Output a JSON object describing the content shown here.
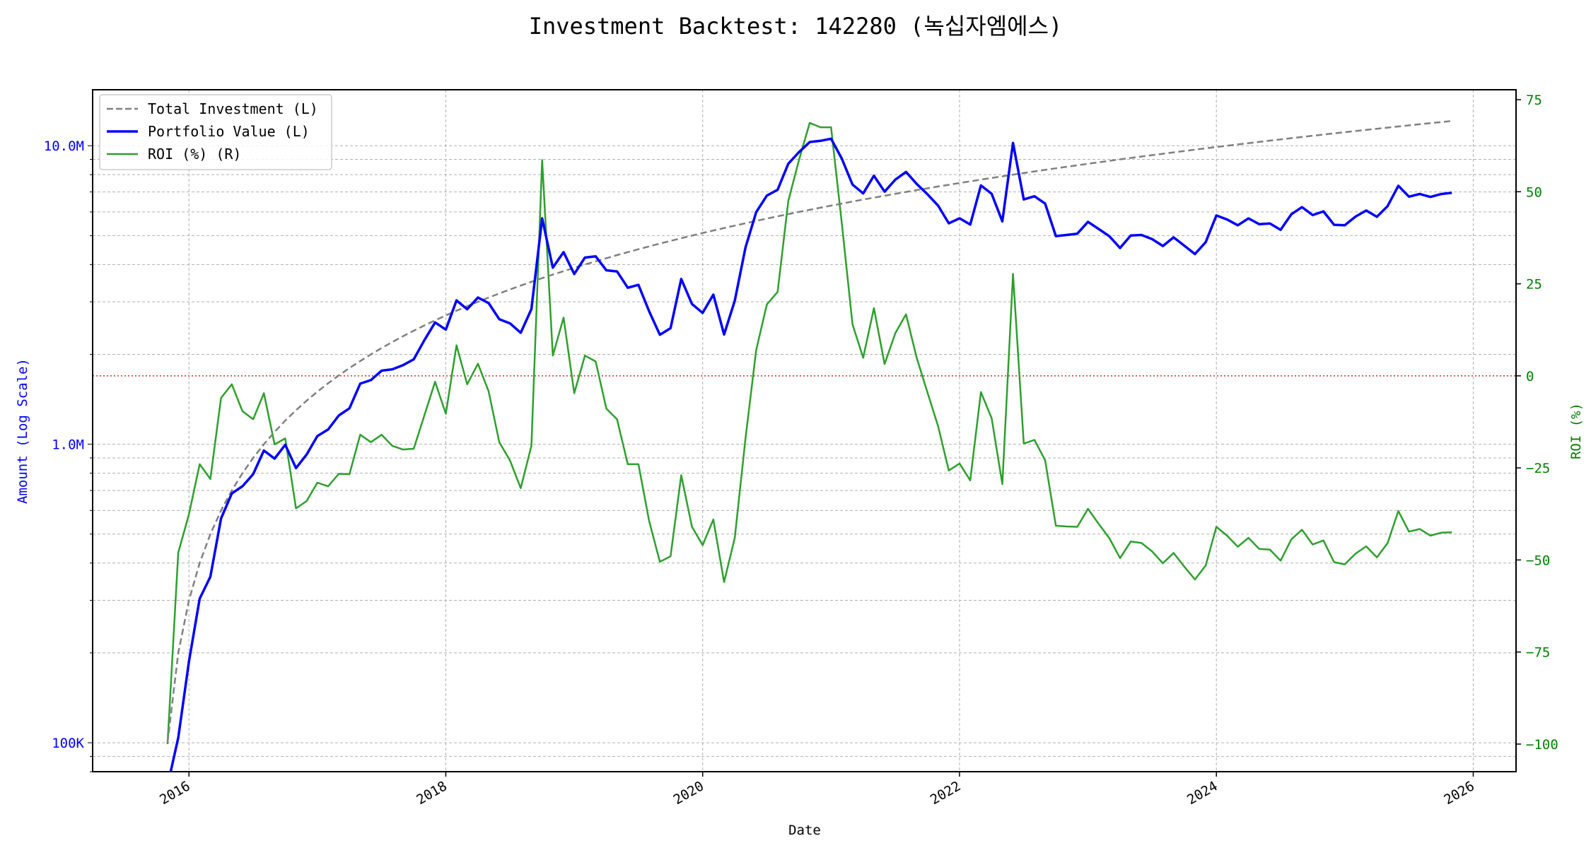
{
  "chart_data": {
    "type": "line",
    "title": "Investment Backtest: 142280 (녹십자엠에스)",
    "xlabel": "Date",
    "ylabel_left": "Amount (Log Scale)",
    "ylabel_right": "ROI (%)",
    "left_scale": "log",
    "ylim_left": [
      80000,
      15400000
    ],
    "ylim_right": [
      -107.5,
      77.7
    ],
    "xlim": [
      "2015-04",
      "2026-05"
    ],
    "grid": true,
    "legend_position": "top-left",
    "x_ticks": [
      "2016",
      "2018",
      "2020",
      "2022",
      "2024",
      "2026"
    ],
    "y_left_ticks": [
      {
        "value": 100000,
        "label": "100K"
      },
      {
        "value": 1000000,
        "label": "1.0M"
      },
      {
        "value": 10000000,
        "label": "10.0M"
      }
    ],
    "y_right_ticks": [
      {
        "value": -100,
        "label": "−100"
      },
      {
        "value": -75,
        "label": "−75"
      },
      {
        "value": -50,
        "label": "−50"
      },
      {
        "value": -25,
        "label": "−25"
      },
      {
        "value": 0,
        "label": "0"
      },
      {
        "value": 25,
        "label": "25"
      },
      {
        "value": 50,
        "label": "50"
      },
      {
        "value": 75,
        "label": "75"
      }
    ],
    "reference_line": {
      "axis": "right",
      "value": 0,
      "color": "#d62728",
      "style": "dotted"
    },
    "colors": {
      "investment": "#808080",
      "portfolio": "#0000ff",
      "roi": "#2ca02c",
      "left_axis": "#0000ff",
      "right_axis": "#008000"
    },
    "x": [
      "2015-11",
      "2015-12",
      "2016-01",
      "2016-02",
      "2016-03",
      "2016-04",
      "2016-05",
      "2016-06",
      "2016-07",
      "2016-08",
      "2016-09",
      "2016-10",
      "2016-11",
      "2016-12",
      "2017-01",
      "2017-02",
      "2017-03",
      "2017-04",
      "2017-05",
      "2017-06",
      "2017-07",
      "2017-08",
      "2017-09",
      "2017-10",
      "2017-11",
      "2017-12",
      "2018-01",
      "2018-02",
      "2018-03",
      "2018-04",
      "2018-05",
      "2018-06",
      "2018-07",
      "2018-08",
      "2018-09",
      "2018-10",
      "2018-11",
      "2018-12",
      "2019-01",
      "2019-02",
      "2019-03",
      "2019-04",
      "2019-05",
      "2019-06",
      "2019-07",
      "2019-08",
      "2019-09",
      "2019-10",
      "2019-11",
      "2019-12",
      "2020-01",
      "2020-02",
      "2020-03",
      "2020-04",
      "2020-05",
      "2020-06",
      "2020-07",
      "2020-08",
      "2020-09",
      "2020-10",
      "2020-11",
      "2020-12",
      "2021-01",
      "2021-02",
      "2021-03",
      "2021-04",
      "2021-05",
      "2021-06",
      "2021-07",
      "2021-08",
      "2021-09",
      "2021-10",
      "2021-11",
      "2021-12",
      "2022-01",
      "2022-02",
      "2022-03",
      "2022-04",
      "2022-05",
      "2022-06",
      "2022-07",
      "2022-08",
      "2022-09",
      "2022-10",
      "2022-11",
      "2022-12",
      "2023-01",
      "2023-02",
      "2023-03",
      "2023-04",
      "2023-05",
      "2023-06",
      "2023-07",
      "2023-08",
      "2023-09",
      "2023-10",
      "2023-11",
      "2023-12",
      "2024-01",
      "2024-02",
      "2024-03",
      "2024-04",
      "2024-05",
      "2024-06",
      "2024-07",
      "2024-08",
      "2024-09",
      "2024-10",
      "2024-11",
      "2024-12",
      "2025-01",
      "2025-02",
      "2025-03",
      "2025-04",
      "2025-05",
      "2025-06",
      "2025-07",
      "2025-08",
      "2025-09",
      "2025-10",
      "2025-11"
    ],
    "series": [
      {
        "name": "Total Investment (L)",
        "axis": "left",
        "style": "dashed",
        "unit": "M",
        "values": [
          0.1,
          0.2,
          0.3,
          0.4,
          0.5,
          0.6,
          0.7,
          0.8,
          0.9,
          1.0,
          1.1,
          1.2,
          1.3,
          1.4,
          1.5,
          1.6,
          1.7,
          1.8,
          1.9,
          2.0,
          2.1,
          2.2,
          2.3,
          2.4,
          2.5,
          2.6,
          2.7,
          2.8,
          2.9,
          3.0,
          3.1,
          3.2,
          3.3,
          3.4,
          3.5,
          3.6,
          3.7,
          3.8,
          3.9,
          4.0,
          4.1,
          4.2,
          4.3,
          4.4,
          4.5,
          4.6,
          4.7,
          4.8,
          4.9,
          5.0,
          5.1,
          5.2,
          5.3,
          5.4,
          5.5,
          5.6,
          5.7,
          5.8,
          5.9,
          6.0,
          6.1,
          6.2,
          6.3,
          6.4,
          6.5,
          6.6,
          6.7,
          6.8,
          6.9,
          7.0,
          7.1,
          7.2,
          7.3,
          7.4,
          7.5,
          7.6,
          7.7,
          7.8,
          7.9,
          8.0,
          8.1,
          8.2,
          8.3,
          8.4,
          8.5,
          8.6,
          8.7,
          8.8,
          8.9,
          9.0,
          9.1,
          9.2,
          9.3,
          9.4,
          9.5,
          9.6,
          9.7,
          9.8,
          9.9,
          10.0,
          10.1,
          10.2,
          10.3,
          10.4,
          10.5,
          10.6,
          10.7,
          10.8,
          10.9,
          11.0,
          11.1,
          11.2,
          11.3,
          11.4,
          11.5,
          11.6,
          11.7,
          11.8,
          11.9,
          12.0,
          12.1
        ]
      },
      {
        "name": "Portfolio Value (L)",
        "axis": "left",
        "style": "solid",
        "unit": "M",
        "values": [
          0,
          0.104,
          0.187,
          0.304,
          0.36,
          0.564,
          0.684,
          0.723,
          0.794,
          0.953,
          0.895,
          0.996,
          0.832,
          0.924,
          1.065,
          1.12,
          1.248,
          1.319,
          1.596,
          1.64,
          1.764,
          1.782,
          1.84,
          1.925,
          2.233,
          2.558,
          2.422,
          3.032,
          2.833,
          3.099,
          2.97,
          2.624,
          2.541,
          2.363,
          2.835,
          5.71,
          3.904,
          4.4,
          3.717,
          4.22,
          4.26,
          3.826,
          3.793,
          3.344,
          3.42,
          2.788,
          2.327,
          2.448,
          3.577,
          2.95,
          2.754,
          3.172,
          2.332,
          3.024,
          4.565,
          5.992,
          6.806,
          7.122,
          8.703,
          9.516,
          10.29,
          10.385,
          10.553,
          9.05,
          7.41,
          6.923,
          7.933,
          7.018,
          7.7,
          8.169,
          7.448,
          6.876,
          6.3,
          5.498,
          5.715,
          5.442,
          7.361,
          6.903,
          5.577,
          10.216,
          6.61,
          6.773,
          6.399,
          4.981,
          5.024,
          5.074,
          5.559,
          5.262,
          4.975,
          4.545,
          5.005,
          5.023,
          4.864,
          4.615,
          4.931,
          4.627,
          4.336,
          4.753,
          5.841,
          5.66,
          5.414,
          5.712,
          5.459,
          5.491,
          5.229,
          5.894,
          6.227,
          5.854,
          6.028,
          5.434,
          5.417,
          5.79,
          6.068,
          5.78,
          6.279,
          7.343,
          6.751,
          6.891,
          6.735,
          6.888,
          6.958
        ]
      },
      {
        "name": "ROI (%) (R)",
        "axis": "right",
        "style": "solid",
        "unit": "%",
        "values": [
          -100,
          -48,
          -37.6,
          -24,
          -28,
          -6,
          -2.3,
          -9.6,
          -11.8,
          -4.7,
          -18.6,
          -17,
          -36,
          -34,
          -29,
          -30,
          -26.6,
          -26.7,
          -16,
          -18,
          -16,
          -19,
          -20,
          -19.8,
          -10.7,
          -1.6,
          -10.3,
          8.3,
          -2.3,
          3.3,
          -4.2,
          -18,
          -23,
          -30.5,
          -19,
          58.6,
          5.5,
          15.8,
          -4.7,
          5.5,
          3.9,
          -8.9,
          -11.8,
          -24,
          -24,
          -39.4,
          -50.5,
          -49,
          -27,
          -41,
          -46,
          -39,
          -56,
          -44,
          -17,
          7,
          19.4,
          22.8,
          47.5,
          58.6,
          68.7,
          67.5,
          67.5,
          41.4,
          14,
          4.9,
          18.4,
          3.2,
          11.6,
          16.7,
          4.9,
          -4.5,
          -13.7,
          -25.7,
          -23.8,
          -28.4,
          -4.4,
          -11.5,
          -29.4,
          27.7,
          -18.4,
          -17.4,
          -22.9,
          -40.7,
          -40.9,
          -41,
          -36.1,
          -40.2,
          -44.1,
          -49.5,
          -45,
          -45.4,
          -47.7,
          -50.9,
          -48.1,
          -51.8,
          -55.3,
          -51.5,
          -41,
          -43.4,
          -46.4,
          -44,
          -47,
          -47.2,
          -50.2,
          -44.4,
          -41.8,
          -45.8,
          -44.7,
          -50.6,
          -51.2,
          -48.3,
          -46.3,
          -49.3,
          -45.4,
          -36.7,
          -42.3,
          -41.6,
          -43.4,
          -42.6,
          -42.5
        ]
      }
    ]
  }
}
